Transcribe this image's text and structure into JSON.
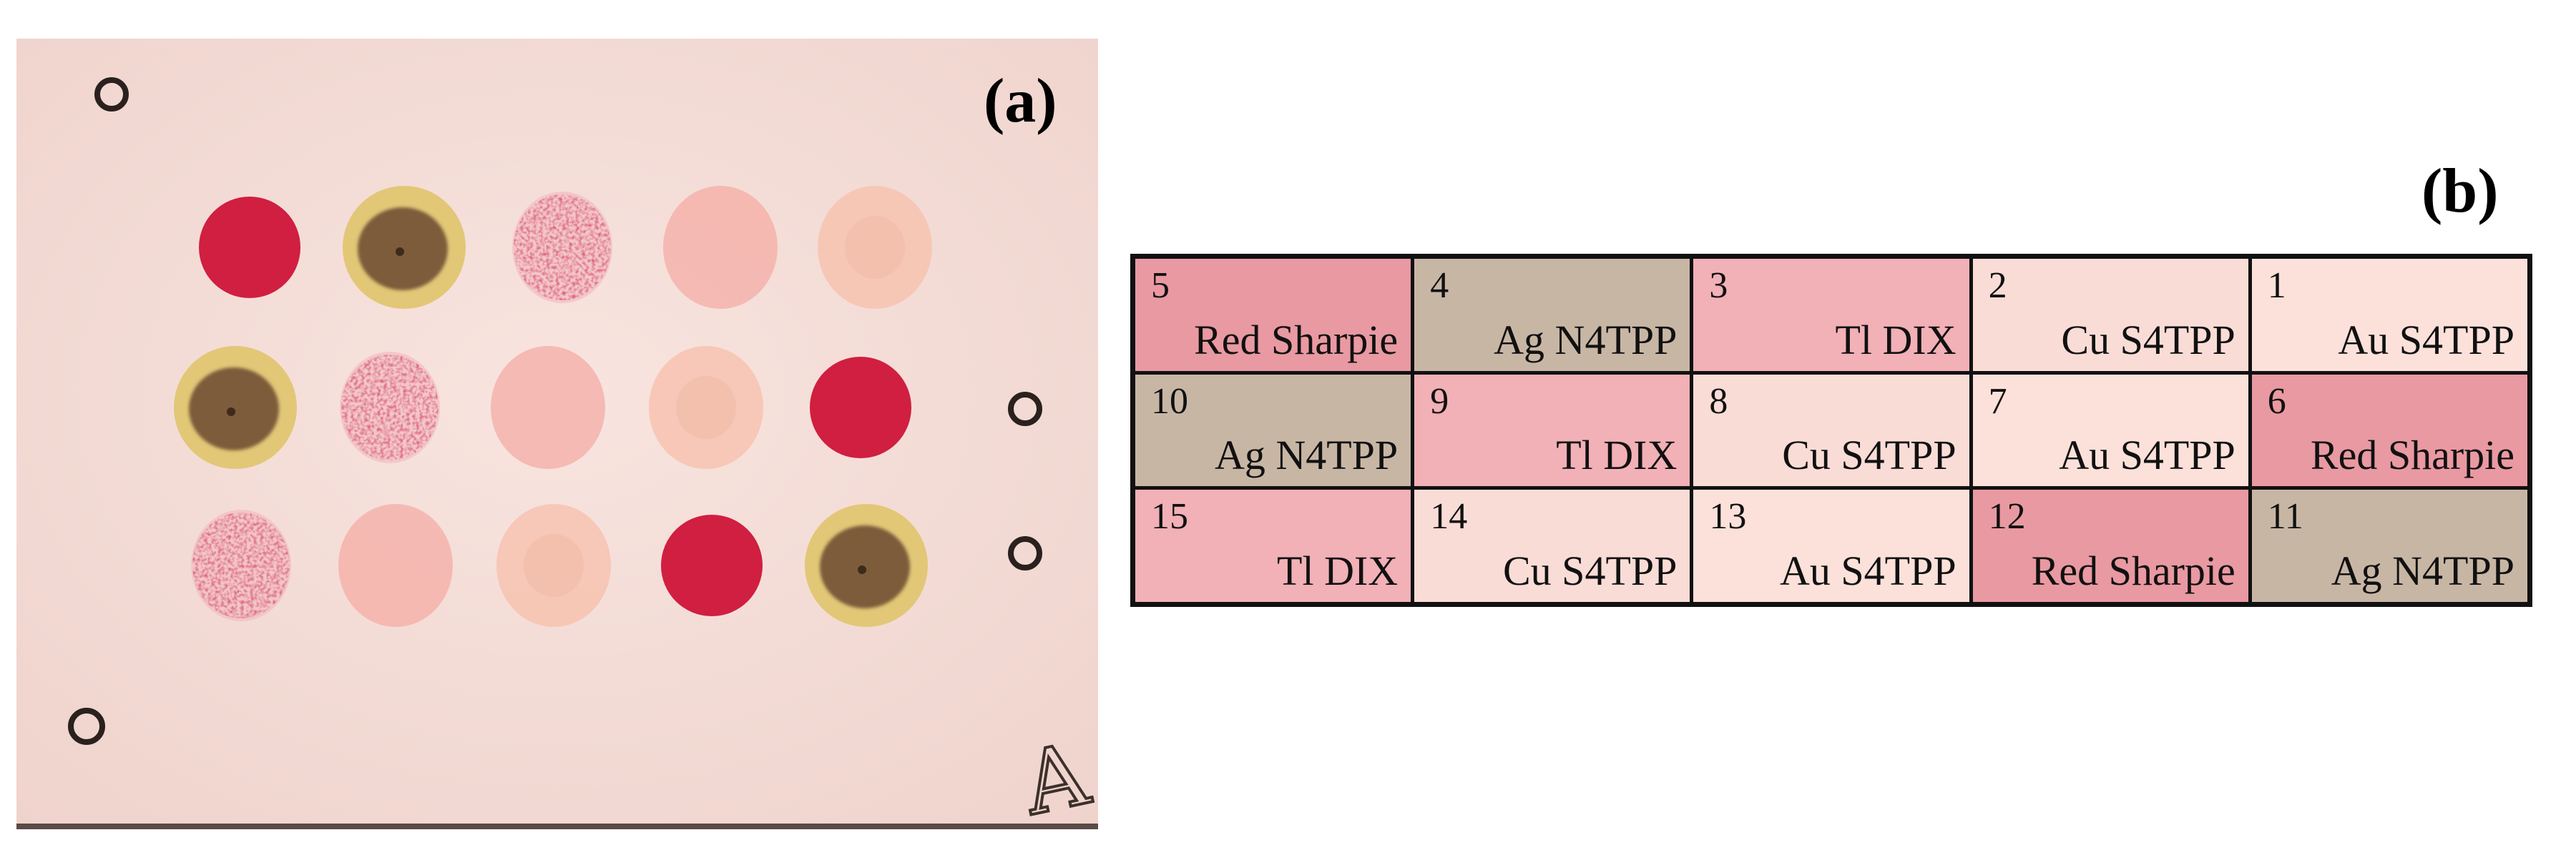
{
  "panel_a": {
    "label": "(a)",
    "paper_color": "#f6dfda",
    "corner_mark_text": "A",
    "spot_colors": {
      "red": "#d01f40",
      "brown": "#7d5b3b",
      "brown_ring": "#e2c777",
      "pink_speckled": "#db5f78",
      "light_pink": "#f5b3ab",
      "peach": "#f7c4b2"
    },
    "spots": [
      [
        "red",
        "brown",
        "pink_speckled",
        "light_pink",
        "peach"
      ],
      [
        "brown",
        "pink_speckled",
        "light_pink",
        "peach",
        "red"
      ],
      [
        "pink_speckled",
        "light_pink",
        "peach",
        "red",
        "brown"
      ]
    ]
  },
  "panel_b": {
    "label": "(b)",
    "cell_colors": {
      "red_sharpie": "#e999a2",
      "ag": "#c8b6a5",
      "tl": "#f2b0b7",
      "cu": "#fadcd7",
      "au": "#fbe1da"
    },
    "cells": [
      {
        "num": "5",
        "name": "Red Sharpie",
        "color": "red_sharpie"
      },
      {
        "num": "4",
        "name": "Ag N4TPP",
        "color": "ag"
      },
      {
        "num": "3",
        "name": "Tl DIX",
        "color": "tl"
      },
      {
        "num": "2",
        "name": "Cu S4TPP",
        "color": "cu"
      },
      {
        "num": "1",
        "name": "Au S4TPP",
        "color": "au"
      },
      {
        "num": "10",
        "name": "Ag N4TPP",
        "color": "ag"
      },
      {
        "num": "9",
        "name": "Tl DIX",
        "color": "tl"
      },
      {
        "num": "8",
        "name": "Cu S4TPP",
        "color": "cu"
      },
      {
        "num": "7",
        "name": "Au S4TPP",
        "color": "au"
      },
      {
        "num": "6",
        "name": "Red Sharpie",
        "color": "red_sharpie"
      },
      {
        "num": "15",
        "name": "Tl DIX",
        "color": "tl"
      },
      {
        "num": "14",
        "name": "Cu S4TPP",
        "color": "cu"
      },
      {
        "num": "13",
        "name": "Au S4TPP",
        "color": "au"
      },
      {
        "num": "12",
        "name": "Red Sharpie",
        "color": "red_sharpie"
      },
      {
        "num": "11",
        "name": "Ag N4TPP",
        "color": "ag"
      }
    ]
  }
}
